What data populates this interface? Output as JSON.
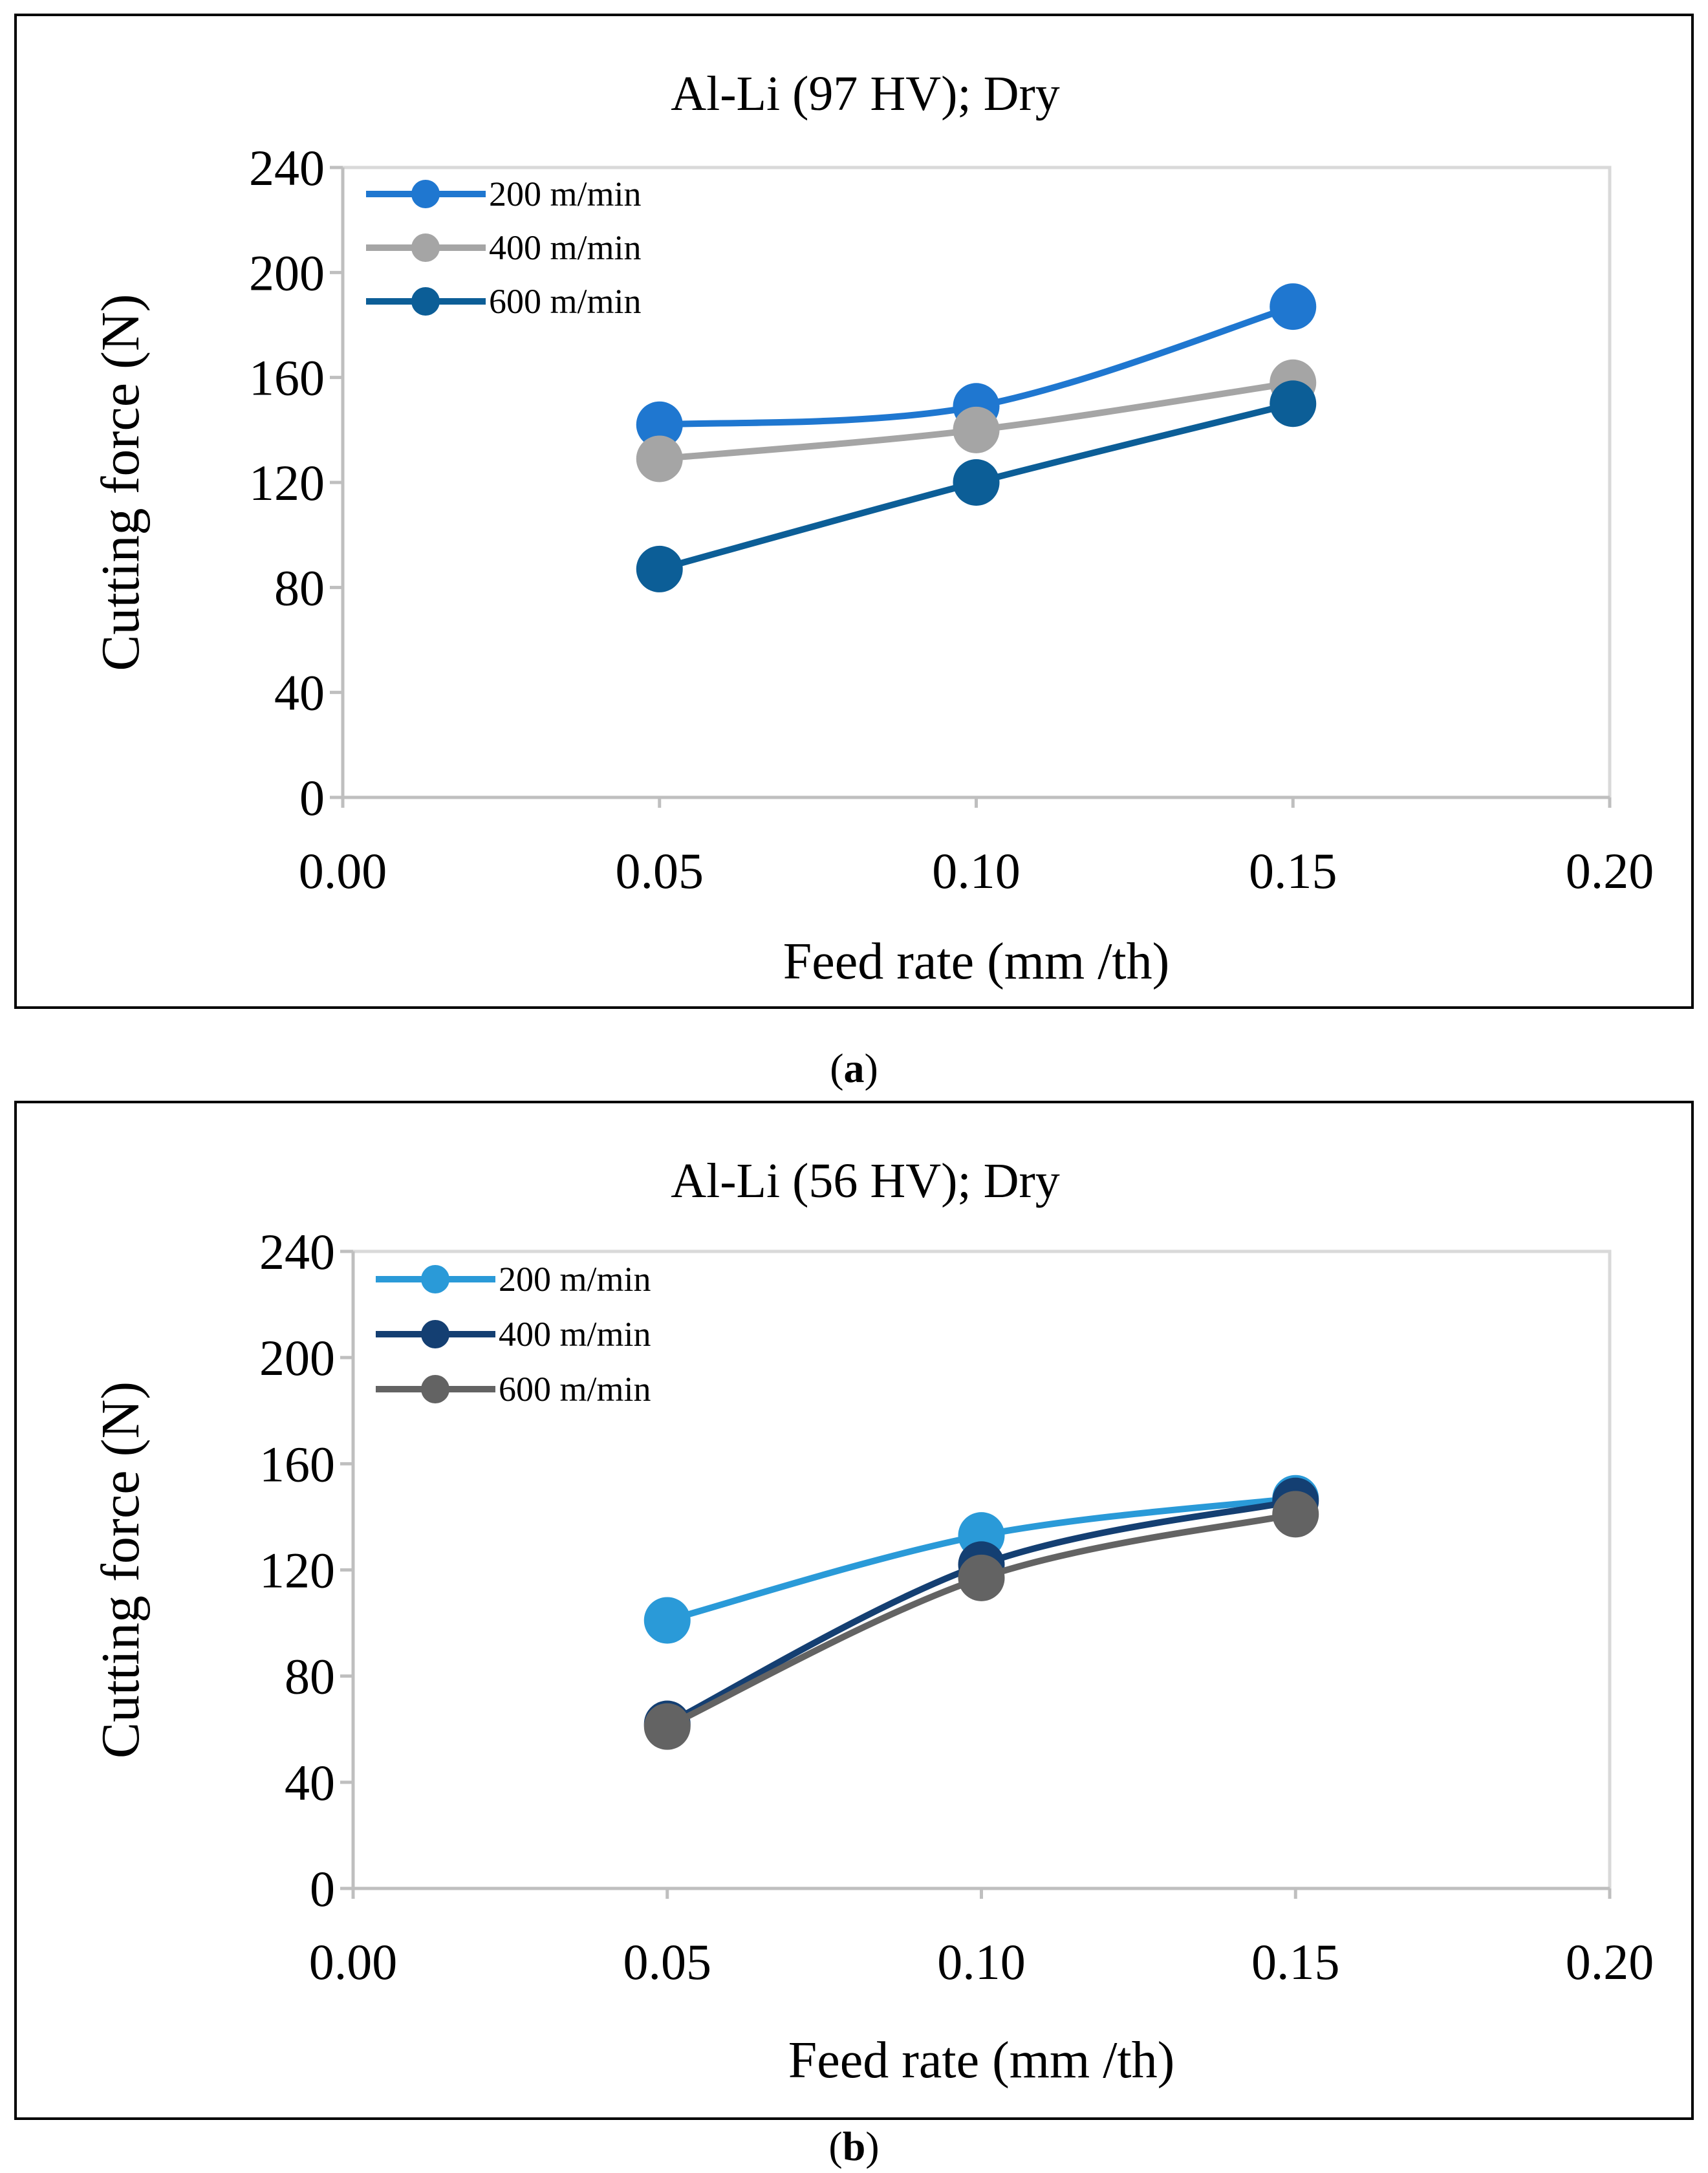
{
  "chart_data": [
    {
      "type": "line",
      "panel": "a",
      "title": "Al-Li (97 HV);  Dry",
      "xlabel": "Feed rate (mm /th)",
      "ylabel": "Cutting force (N)",
      "xlim": [
        0.0,
        0.2
      ],
      "ylim": [
        0,
        240
      ],
      "xticks": [
        "0.00",
        "0.05",
        "0.10",
        "0.15",
        "0.20"
      ],
      "yticks": [
        "0",
        "40",
        "80",
        "120",
        "160",
        "200",
        "240"
      ],
      "grid": false,
      "smooth": true,
      "legend_position": "top-left",
      "x": [
        0.05,
        0.1,
        0.15
      ],
      "series": [
        {
          "name": "200 m/min",
          "color": "#1F77D0",
          "values": [
            142,
            149,
            187
          ]
        },
        {
          "name": "400 m/min",
          "color": "#A5A5A5",
          "values": [
            129,
            140,
            158
          ]
        },
        {
          "name": "600 m/min",
          "color": "#0C5E97",
          "values": [
            87,
            120,
            150
          ]
        }
      ]
    },
    {
      "type": "line",
      "panel": "b",
      "title": "Al-Li (56 HV);  Dry",
      "xlabel": "Feed rate (mm /th)",
      "ylabel": "Cutting force (N)",
      "xlim": [
        0.0,
        0.2
      ],
      "ylim": [
        0,
        240
      ],
      "xticks": [
        "0.00",
        "0.05",
        "0.10",
        "0.15",
        "0.20"
      ],
      "yticks": [
        "0",
        "40",
        "80",
        "120",
        "160",
        "200",
        "240"
      ],
      "grid": false,
      "smooth": true,
      "legend_position": "top-left",
      "x": [
        0.05,
        0.1,
        0.15
      ],
      "series": [
        {
          "name": "200 m/min",
          "color": "#2A9AD8",
          "values": [
            101,
            133,
            147
          ]
        },
        {
          "name": "400 m/min",
          "color": "#143F72",
          "values": [
            62,
            122,
            146
          ]
        },
        {
          "name": "600 m/min",
          "color": "#636363",
          "values": [
            61,
            117,
            141
          ]
        }
      ]
    }
  ],
  "captions": [
    {
      "open": "(",
      "letter": "a",
      "close": ")"
    },
    {
      "open": "(",
      "letter": "b",
      "close": ")"
    }
  ]
}
